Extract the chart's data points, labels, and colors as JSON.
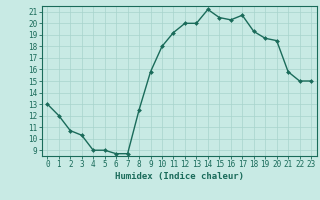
{
  "x": [
    0,
    1,
    2,
    3,
    4,
    5,
    6,
    7,
    8,
    9,
    10,
    11,
    12,
    13,
    14,
    15,
    16,
    17,
    18,
    19,
    20,
    21,
    22,
    23
  ],
  "y": [
    13,
    12,
    10.7,
    10.3,
    9,
    9,
    8.7,
    8.7,
    12.5,
    15.8,
    18.0,
    19.2,
    20.0,
    20.0,
    21.2,
    20.5,
    20.3,
    20.7,
    19.3,
    18.7,
    18.5,
    15.8,
    15.0,
    15.0
  ],
  "line_color": "#1a6b5a",
  "marker": "D",
  "marker_size": 2.0,
  "linewidth": 1.0,
  "bg_color": "#c8eae4",
  "grid_color": "#a8d4cc",
  "xlabel": "Humidex (Indice chaleur)",
  "xlabel_fontsize": 6.5,
  "xlim": [
    -0.5,
    23.5
  ],
  "ylim": [
    8.5,
    21.5
  ],
  "yticks": [
    9,
    10,
    11,
    12,
    13,
    14,
    15,
    16,
    17,
    18,
    19,
    20,
    21
  ],
  "xticks": [
    0,
    1,
    2,
    3,
    4,
    5,
    6,
    7,
    8,
    9,
    10,
    11,
    12,
    13,
    14,
    15,
    16,
    17,
    18,
    19,
    20,
    21,
    22,
    23
  ],
  "tick_fontsize": 5.5,
  "tick_color": "#1a6b5a",
  "spine_color": "#1a6b5a"
}
